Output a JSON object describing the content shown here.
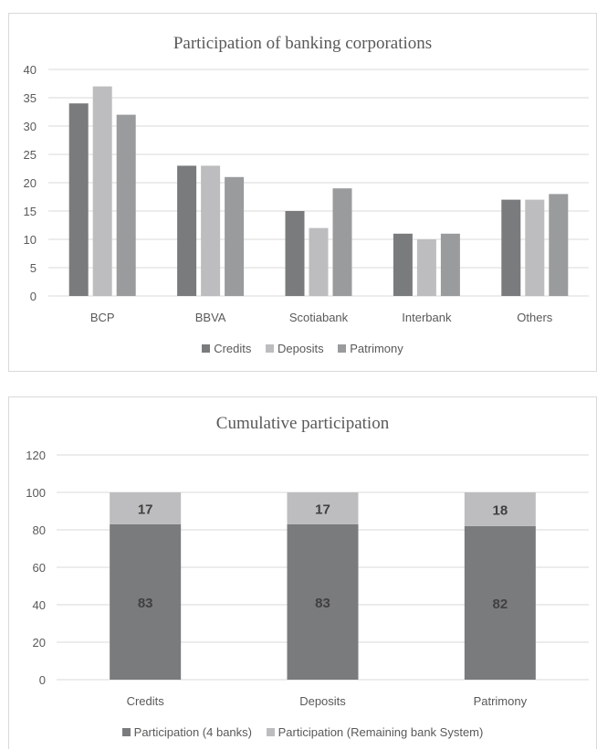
{
  "colors": {
    "credits": "#7a7b7d",
    "deposits": "#bdbdbf",
    "patrimony": "#9a9b9d",
    "grid": "#d9d9d9",
    "text": "#595959",
    "label_dark": "#404040"
  },
  "chart_data": [
    {
      "type": "bar",
      "title": "Participation of banking corporations",
      "categories": [
        "BCP",
        "BBVA",
        "Scotiabank",
        "Interbank",
        "Others"
      ],
      "series": [
        {
          "name": "Credits",
          "values": [
            34,
            23,
            15,
            11,
            17
          ],
          "color": "#7a7b7d"
        },
        {
          "name": "Deposits",
          "values": [
            37,
            23,
            12,
            10,
            17
          ],
          "color": "#bdbdbf"
        },
        {
          "name": "Patrimony",
          "values": [
            32,
            21,
            19,
            11,
            18
          ],
          "color": "#9a9b9d"
        }
      ],
      "ylim": [
        0,
        40
      ],
      "yticks": [
        "0",
        "5",
        "10",
        "15",
        "20",
        "25",
        "30",
        "35",
        "40"
      ],
      "grid": true,
      "legend": "bottom"
    },
    {
      "type": "bar",
      "stacked": true,
      "title": "Cumulative participation",
      "categories": [
        "Credits",
        "Deposits",
        "Patrimony"
      ],
      "series": [
        {
          "name": "Participation (4 banks)",
          "values": [
            83,
            83,
            82
          ],
          "color": "#7a7b7d"
        },
        {
          "name": "Participation (Remaining bank System)",
          "values": [
            17,
            17,
            18
          ],
          "color": "#bdbdbf"
        }
      ],
      "ylim": [
        0,
        120
      ],
      "yticks": [
        "0",
        "20",
        "40",
        "60",
        "80",
        "100",
        "120"
      ],
      "grid": true,
      "data_labels": true,
      "legend": "bottom"
    }
  ]
}
